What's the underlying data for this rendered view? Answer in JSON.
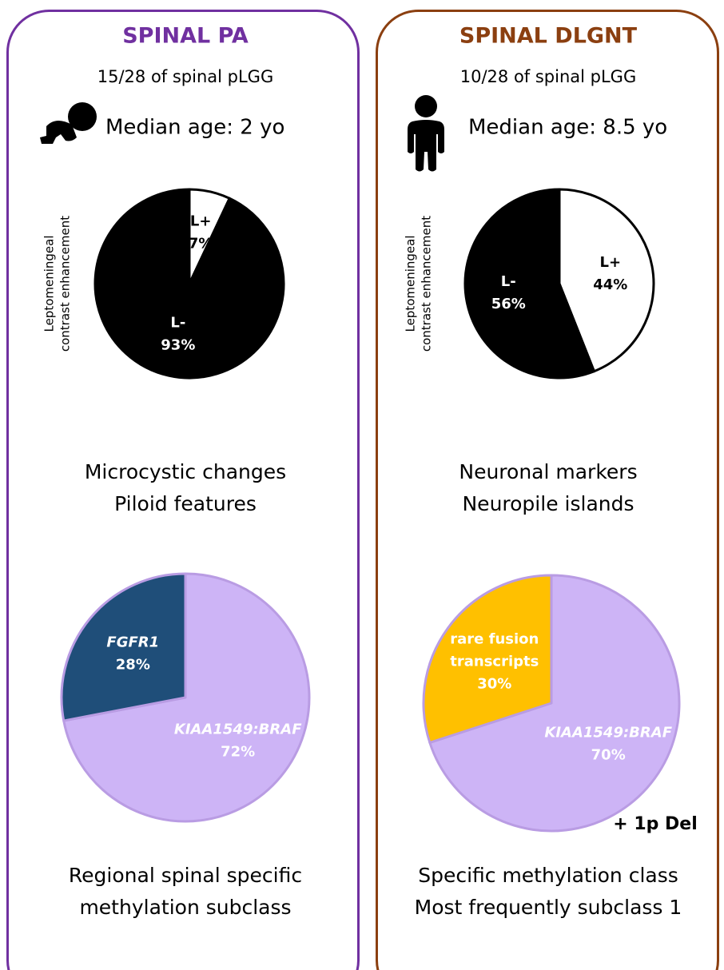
{
  "panels": [
    {
      "title": "SPINAL PA",
      "color": "#7030a0",
      "subtitle": "15/28 of spinal pLGG",
      "age": "Median age: 2 yo",
      "ylabel": [
        "Leptomeningeal",
        "contrast enhancement"
      ],
      "pie1": {
        "labels": [
          "L+",
          "L-"
        ],
        "values": [
          7,
          93
        ],
        "value_labels": [
          "7%",
          "93%"
        ],
        "colors": [
          "#ffffff",
          "#000000"
        ],
        "edgecolor": "#000000"
      },
      "features": [
        "Microcystic changes",
        "Piloid features"
      ],
      "pie2": {
        "labels": [
          "KIAA1549:BRAF",
          "FGFR1"
        ],
        "values": [
          72,
          28
        ],
        "value_labels": [
          "72%",
          "28%"
        ],
        "colors": [
          "#cdb4f6",
          "#1f4e79"
        ],
        "edgecolor": "#b99ce3"
      },
      "methylation": [
        "Regional spinal specific",
        "methylation subclass"
      ]
    },
    {
      "title": "SPINAL DLGNT",
      "color": "#8b3f10",
      "subtitle": "10/28 of spinal pLGG",
      "age": "Median age: 8.5 yo",
      "ylabel": [
        "Leptomeningeal",
        "contrast enhancement"
      ],
      "pie1": {
        "labels": [
          "L+",
          "L-"
        ],
        "values": [
          44,
          56
        ],
        "value_labels": [
          "44%",
          "56%"
        ],
        "colors": [
          "#ffffff",
          "#000000"
        ],
        "edgecolor": "#000000"
      },
      "features": [
        "Neuronal markers",
        "Neuropile islands"
      ],
      "pie2": {
        "labels": [
          "KIAA1549:BRAF",
          [
            "rare fusion",
            "transcripts"
          ]
        ],
        "values": [
          70,
          30
        ],
        "value_labels": [
          "70%",
          "30%"
        ],
        "colors": [
          "#cdb4f6",
          "#ffc000"
        ],
        "edgecolor": "#b99ce3"
      },
      "note": "+ 1p Del",
      "methylation": [
        "Specific methylation class",
        "Most frequently subclass 1"
      ]
    }
  ]
}
